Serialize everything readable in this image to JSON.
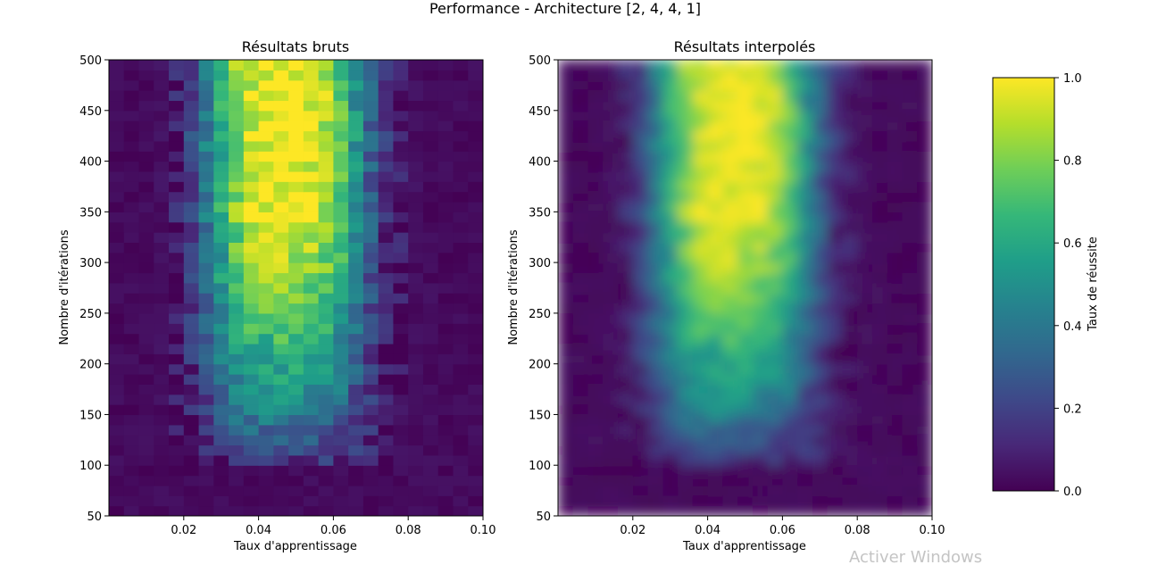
{
  "figure": {
    "suptitle": "Performance - Architecture [2, 4, 4, 1]",
    "watermark": "Activer Windows"
  },
  "colors": {
    "colormap": "viridis",
    "viridis_stops": [
      "#440154",
      "#482878",
      "#3e4989",
      "#31688e",
      "#26828e",
      "#1f9e89",
      "#35b779",
      "#6ece58",
      "#b5de2b",
      "#fde725"
    ]
  },
  "chart_data": [
    {
      "type": "heatmap",
      "title": "Résultats bruts",
      "xlabel": "Taux d'apprentissage",
      "ylabel": "Nombre d'itérations",
      "xlim": [
        0.0,
        0.1
      ],
      "ylim": [
        50,
        500
      ],
      "xticks": [
        "0.02",
        "0.04",
        "0.06",
        "0.08",
        "0.10"
      ],
      "xtick_values": [
        0.02,
        0.04,
        0.06,
        0.08,
        0.1
      ],
      "yticks": [
        "50",
        "100",
        "150",
        "200",
        "250",
        "300",
        "350",
        "400",
        "450",
        "500"
      ],
      "ytick_values": [
        50,
        100,
        150,
        200,
        250,
        300,
        350,
        400,
        450,
        500
      ],
      "interpolation": "nearest",
      "x_bins": 25,
      "y_bins": 45,
      "z_range": [
        0.0,
        1.0
      ],
      "peak_success": 1.0,
      "peak_learning_rate": 0.045,
      "peak_iterations": 450
    },
    {
      "type": "heatmap",
      "title": "Résultats interpolés",
      "xlabel": "Taux d'apprentissage",
      "ylabel": "Nombre d'itérations",
      "xlim": [
        0.0,
        0.1
      ],
      "ylim": [
        50,
        500
      ],
      "xticks": [
        "0.02",
        "0.04",
        "0.06",
        "0.08",
        "0.10"
      ],
      "xtick_values": [
        0.02,
        0.04,
        0.06,
        0.08,
        0.1
      ],
      "yticks": [
        "50",
        "100",
        "150",
        "200",
        "250",
        "300",
        "350",
        "400",
        "450",
        "500"
      ],
      "ytick_values": [
        50,
        100,
        150,
        200,
        250,
        300,
        350,
        400,
        450,
        500
      ],
      "interpolation": "smooth",
      "z_range": [
        0.0,
        1.0
      ]
    },
    {
      "type": "colorbar",
      "label": "Taux de réussite",
      "range": [
        0.0,
        1.0
      ],
      "ticks": [
        "0.0",
        "0.2",
        "0.4",
        "0.6",
        "0.8",
        "1.0"
      ],
      "tick_values": [
        0.0,
        0.2,
        0.4,
        0.6,
        0.8,
        1.0
      ]
    }
  ]
}
